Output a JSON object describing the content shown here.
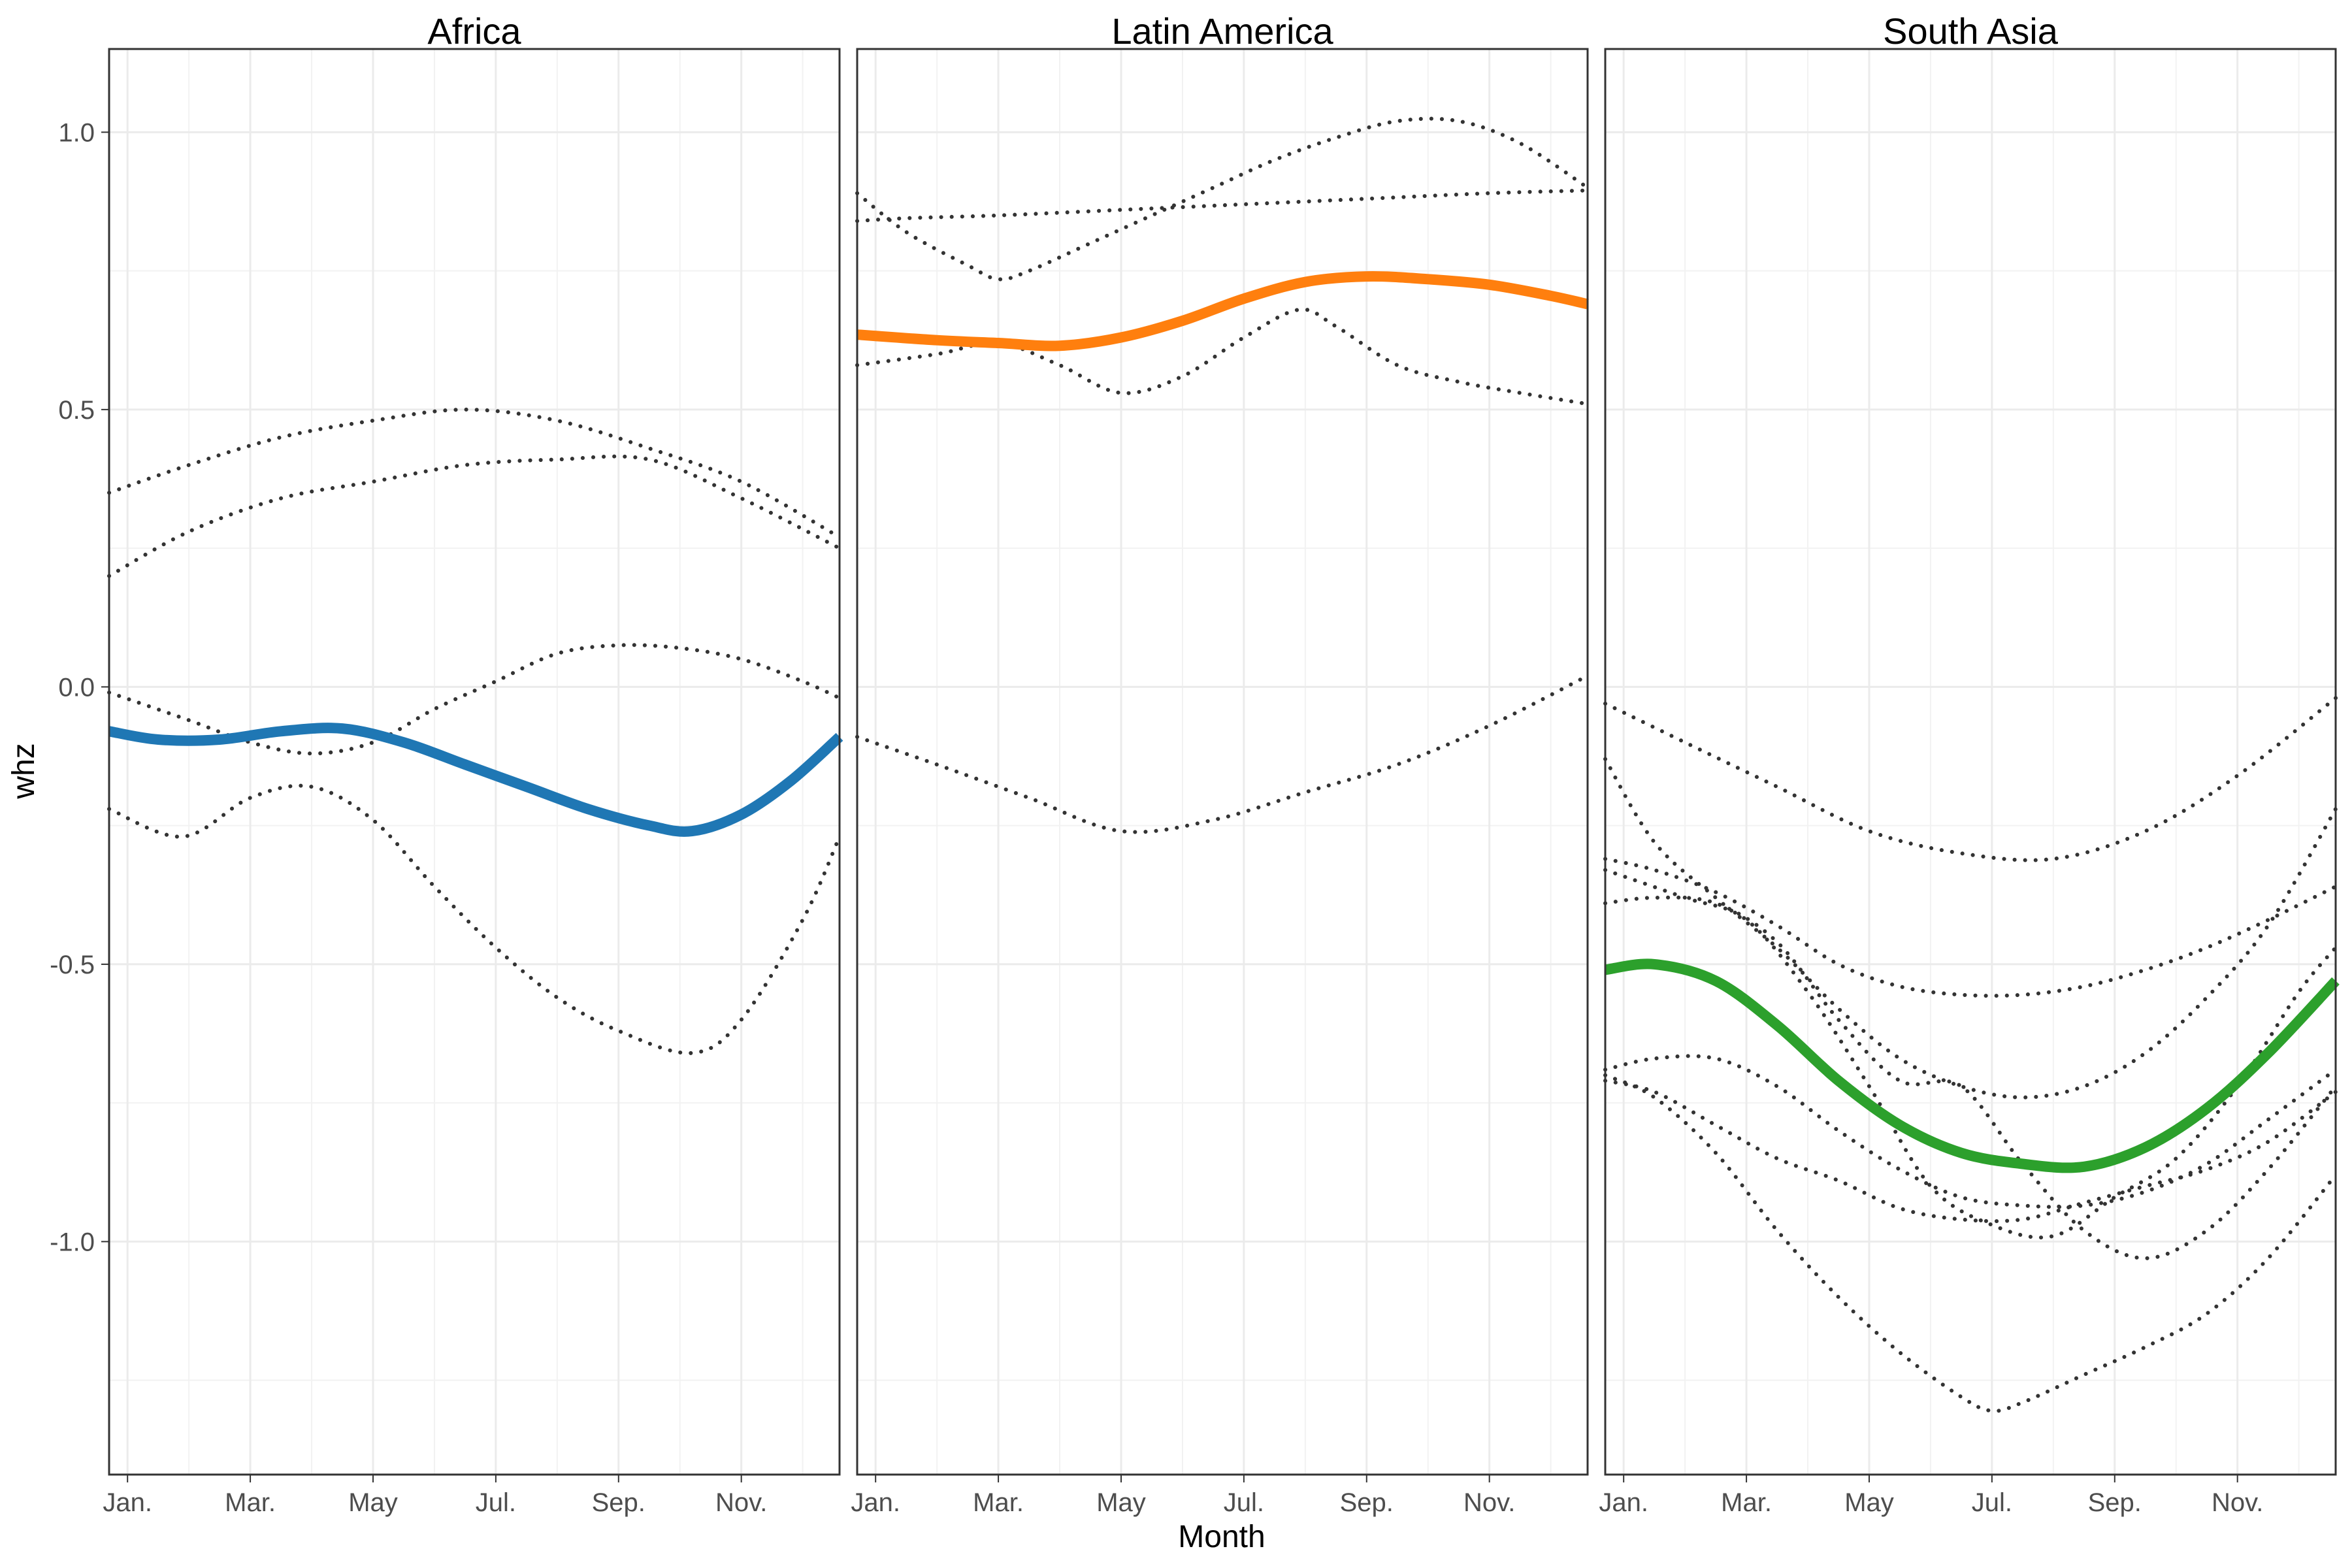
{
  "chart_data": {
    "type": "line",
    "xlabel": "Month",
    "ylabel": "whz",
    "x_ticks": [
      "Jan.",
      "Mar.",
      "May",
      "Jul.",
      "Sep.",
      "Nov."
    ],
    "x_tick_months": [
      1,
      3,
      5,
      7,
      9,
      11
    ],
    "xlim": [
      0.7,
      12.6
    ],
    "y_ticks": [
      "1.0",
      "0.5",
      "0.0",
      "-0.5",
      "-1.0"
    ],
    "y_tick_values": [
      1.0,
      0.5,
      0.0,
      -0.5,
      -1.0
    ],
    "ylim": [
      -1.42,
      1.15
    ],
    "grid": true,
    "legend": "none",
    "panels": [
      {
        "title": "Africa",
        "color": "#1f77b4",
        "main": {
          "x": [
            0.7,
            1.5,
            2.5,
            3.5,
            4.5,
            5.5,
            6.5,
            7.5,
            8.5,
            9.5,
            10.2,
            11,
            11.8,
            12.6
          ],
          "y": [
            -0.08,
            -0.095,
            -0.095,
            -0.08,
            -0.075,
            -0.1,
            -0.14,
            -0.18,
            -0.22,
            -0.25,
            -0.26,
            -0.23,
            -0.17,
            -0.09
          ]
        },
        "dotted": [
          {
            "x": [
              0.7,
              2,
              3.5,
              5,
              6.5,
              8,
              9.5,
              11,
              12.6
            ],
            "y": [
              0.35,
              0.4,
              0.45,
              0.48,
              0.5,
              0.48,
              0.43,
              0.37,
              0.27
            ]
          },
          {
            "x": [
              0.7,
              2,
              3.5,
              5,
              6.5,
              8,
              9.5,
              11,
              12.6
            ],
            "y": [
              0.2,
              0.28,
              0.34,
              0.37,
              0.4,
              0.41,
              0.41,
              0.34,
              0.25
            ]
          },
          {
            "x": [
              0.7,
              2,
              3,
              4,
              5,
              6,
              7,
              8,
              9,
              10,
              11,
              12,
              12.6
            ],
            "y": [
              -0.01,
              -0.06,
              -0.1,
              -0.12,
              -0.1,
              -0.04,
              0.01,
              0.06,
              0.075,
              0.07,
              0.05,
              0.01,
              -0.02
            ]
          },
          {
            "x": [
              0.7,
              1.9,
              3,
              4,
              5,
              6,
              7,
              8,
              9,
              10.2,
              11,
              12,
              12.6
            ],
            "y": [
              -0.22,
              -0.27,
              -0.2,
              -0.18,
              -0.24,
              -0.36,
              -0.47,
              -0.56,
              -0.62,
              -0.66,
              -0.6,
              -0.42,
              -0.27
            ]
          }
        ]
      },
      {
        "title": "Latin America",
        "color": "#ff7f0e",
        "main": {
          "x": [
            0.7,
            2,
            3,
            4,
            5,
            6,
            7,
            8,
            9,
            10,
            11,
            12,
            12.6
          ],
          "y": [
            0.635,
            0.625,
            0.62,
            0.615,
            0.63,
            0.66,
            0.7,
            0.73,
            0.74,
            0.735,
            0.725,
            0.705,
            0.69
          ]
        },
        "dotted": [
          {
            "x": [
              0.7,
              1.5,
              3,
              5,
              7,
              9,
              11,
              12.6
            ],
            "y": [
              0.84,
              0.845,
              0.85,
              0.86,
              0.87,
              0.88,
              0.89,
              0.895
            ]
          },
          {
            "x": [
              0.7,
              1.5,
              2.5,
              3,
              3.5,
              4.5,
              5.5,
              6.5,
              7.5,
              8.5,
              9.5,
              10.5,
              11.5,
              12.6
            ],
            "y": [
              0.89,
              0.82,
              0.76,
              0.735,
              0.75,
              0.8,
              0.85,
              0.9,
              0.95,
              0.99,
              1.02,
              1.02,
              0.98,
              0.9
            ]
          },
          {
            "x": [
              0.7,
              2,
              3,
              4,
              5,
              6,
              7,
              7.9,
              8.5,
              9.5,
              10.5,
              11.5,
              12.6
            ],
            "y": [
              0.58,
              0.6,
              0.62,
              0.58,
              0.53,
              0.56,
              0.63,
              0.68,
              0.65,
              0.58,
              0.55,
              0.53,
              0.51
            ]
          },
          {
            "x": [
              0.7,
              2,
              3.5,
              5,
              6.5,
              8,
              9.5,
              11,
              12.6
            ],
            "y": [
              -0.09,
              -0.14,
              -0.2,
              -0.26,
              -0.24,
              -0.19,
              -0.14,
              -0.07,
              0.02
            ]
          }
        ]
      },
      {
        "title": "South Asia",
        "color": "#2ca02c",
        "main": {
          "x": [
            0.7,
            1.5,
            2.5,
            3.5,
            4.5,
            5.5,
            6.5,
            7.5,
            8.5,
            9.5,
            10.5,
            11.5,
            12.6
          ],
          "y": [
            -0.51,
            -0.5,
            -0.53,
            -0.61,
            -0.71,
            -0.79,
            -0.84,
            -0.86,
            -0.865,
            -0.83,
            -0.76,
            -0.66,
            -0.53
          ]
        },
        "dotted": [
          {
            "x": [
              0.7,
              2,
              3.5,
              5,
              6.5,
              8,
              9.5,
              11,
              12.6
            ],
            "y": [
              -0.03,
              -0.1,
              -0.18,
              -0.26,
              -0.3,
              -0.31,
              -0.26,
              -0.16,
              -0.02
            ]
          },
          {
            "x": [
              0.7,
              1.5,
              2.5,
              3.5,
              4.5,
              5.5,
              6.5,
              7.5,
              8.5,
              9.5,
              10.5,
              11.5,
              12.6
            ],
            "y": [
              -0.31,
              -0.33,
              -0.37,
              -0.43,
              -0.5,
              -0.54,
              -0.555,
              -0.555,
              -0.54,
              -0.51,
              -0.47,
              -0.42,
              -0.36
            ]
          },
          {
            "x": [
              0.7,
              2,
              3,
              4,
              5,
              6,
              7,
              8,
              9,
              10,
              11,
              12,
              12.6
            ],
            "y": [
              -0.33,
              -0.38,
              -0.42,
              -0.55,
              -0.72,
              -0.9,
              -0.97,
              -0.99,
              -0.92,
              -0.85,
              -0.72,
              -0.55,
              -0.47
            ]
          },
          {
            "x": [
              0.7,
              1.5,
              2.5,
              3.5,
              4.5,
              5.5,
              6.5,
              7.5,
              8.5,
              9.5,
              10.5,
              11.5,
              12.6
            ],
            "y": [
              -0.13,
              -0.28,
              -0.38,
              -0.47,
              -0.58,
              -0.67,
              -0.72,
              -0.74,
              -0.72,
              -0.66,
              -0.56,
              -0.43,
              -0.22
            ]
          },
          {
            "x": [
              0.7,
              1.5,
              2.5,
              3.5,
              4.5,
              5.5,
              6.5,
              7.5,
              8.5,
              9.5,
              10.5,
              11.5,
              12.6
            ],
            "y": [
              -0.39,
              -0.38,
              -0.39,
              -0.46,
              -0.6,
              -0.71,
              -0.72,
              -0.86,
              -0.98,
              -1.03,
              -0.98,
              -0.87,
              -0.72
            ]
          },
          {
            "x": [
              0.7,
              1.5,
              2.5,
              3.5,
              4.5,
              5.5,
              6.5,
              7.5,
              8.5,
              9.5,
              10.5,
              11.5,
              12.6
            ],
            "y": [
              -0.69,
              -0.67,
              -0.67,
              -0.72,
              -0.8,
              -0.87,
              -0.92,
              -0.935,
              -0.935,
              -0.91,
              -0.86,
              -0.78,
              -0.69
            ]
          },
          {
            "x": [
              0.7,
              1.5,
              2.5,
              3.5,
              4.5,
              5.5,
              6.5,
              7.5,
              8.5,
              9.5,
              10.5,
              11.5,
              12.6
            ],
            "y": [
              -0.71,
              -0.73,
              -0.79,
              -0.85,
              -0.89,
              -0.94,
              -0.96,
              -0.96,
              -0.93,
              -0.9,
              -0.87,
              -0.82,
              -0.73
            ]
          },
          {
            "x": [
              0.7,
              1.5,
              2.5,
              3.5,
              4.5,
              5.5,
              6.5,
              7,
              7.5,
              8.5,
              9.5,
              10.5,
              11.5,
              12.6
            ],
            "y": [
              -0.7,
              -0.74,
              -0.84,
              -0.98,
              -1.1,
              -1.2,
              -1.28,
              -1.305,
              -1.29,
              -1.24,
              -1.19,
              -1.13,
              -1.03,
              -0.88
            ]
          }
        ]
      }
    ]
  }
}
